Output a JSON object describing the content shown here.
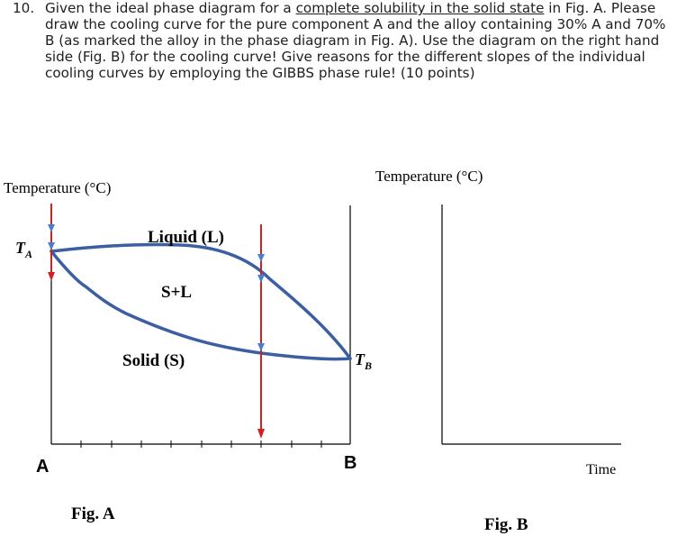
{
  "question": {
    "number": "10.",
    "text_before": "Given the ideal phase diagram for a ",
    "text_underlined": "complete solubility in the solid state",
    "text_after": " in Fig. A. Please draw the cooling curve for the pure component A and the alloy containing 30% A and 70% B (as marked the alloy in the phase diagram in Fig. A). Use the diagram on the right hand side (Fig. B) for the cooling curve! Give reasons for the different slopes of the individual cooling curves by employing the GIBBS phase rule! (10 points)"
  },
  "fig_a": {
    "y_axis_label": "Temperature (°C)",
    "ta_label": "T",
    "ta_sub": "A",
    "tb_label": "T",
    "tb_sub": "B",
    "region_liquid": "Liquid (L)",
    "region_mix": "S+L",
    "region_solid": "Solid (S)",
    "x_left": "A",
    "x_right": "B",
    "caption": "Fig. A"
  },
  "fig_b": {
    "y_axis_label": "Temperature (°C)",
    "x_axis_label": "Time",
    "caption": "Fig. B"
  },
  "colors": {
    "curve": "#3b5fa0",
    "marker_line": "#d02020",
    "arrow_blue": "#4a7fd0",
    "axis": "#000000"
  }
}
